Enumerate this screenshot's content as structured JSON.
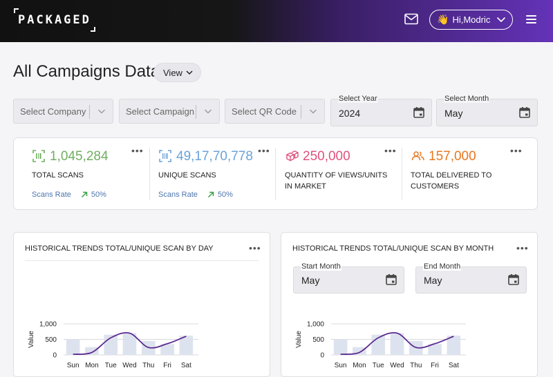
{
  "header": {
    "logo_text": "PACKAGED",
    "greeting": "Hi,Modric",
    "wave_emoji": "👋",
    "bg_from": "#111111",
    "bg_to": "#6433b8"
  },
  "page": {
    "title": "All Campaigns Data",
    "view_label": "View"
  },
  "filters": {
    "company_placeholder": "Select Company",
    "campaign_placeholder": "Select Campaign",
    "qr_placeholder": "Select QR Code",
    "year_label": "Select Year",
    "year_value": "2024",
    "month_label": "Select Month",
    "month_value": "May"
  },
  "stats": [
    {
      "value": "1,045,284",
      "label": "TOTAL SCANS",
      "rate_label": "Scans Rate",
      "rate_value": "50%",
      "color": "#6fae5f",
      "icon": "scan-icon"
    },
    {
      "value": "49,17,70,778",
      "label": "UNIQUE SCANS",
      "rate_label": "Scans Rate",
      "rate_value": "50%",
      "color": "#6aa3d9",
      "icon": "scan-icon"
    },
    {
      "value": "250,000",
      "label": "QUANTITY OF VIEWS/UNITS IN MARKET",
      "color": "#e0527f",
      "icon": "boxes-icon"
    },
    {
      "value": "157,000",
      "label": "TOTAL DELIVERED TO CUSTOMERS",
      "color": "#e8771e",
      "icon": "users-icon"
    }
  ],
  "daily_card": {
    "title": "HISTORICAL TRENDS TOTAL/UNIQUE SCAN BY DAY"
  },
  "monthly_card": {
    "title": "HISTORICAL TRENDS TOTAL/UNIQUE SCAN BY MONTH",
    "start_label": "Start Month",
    "start_value": "May",
    "end_label": "End Month",
    "end_value": "May"
  },
  "chart_data": [
    {
      "type": "bar",
      "categories": [
        "Sun",
        "Mon",
        "Tue",
        "Wed",
        "Thu",
        "Fri",
        "Sat"
      ],
      "series": [
        {
          "type": "bar",
          "values": [
            500,
            250,
            650,
            700,
            450,
            350,
            620
          ]
        },
        {
          "type": "line",
          "values": [
            20,
            80,
            550,
            700,
            240,
            360,
            600
          ]
        }
      ],
      "ylabel": "Value",
      "yticks": [
        "0",
        "500",
        "1,000"
      ],
      "ylim": [
        0,
        1000
      ],
      "bar_color": "#dde3ee",
      "line_color": "#5b2a91"
    },
    {
      "type": "bar",
      "categories": [
        "Sun",
        "Mon",
        "Tue",
        "Wed",
        "Thu",
        "Fri",
        "Sat"
      ],
      "series": [
        {
          "type": "bar",
          "values": [
            500,
            250,
            650,
            700,
            450,
            350,
            620
          ]
        },
        {
          "type": "line",
          "values": [
            20,
            80,
            550,
            700,
            240,
            360,
            600
          ]
        }
      ],
      "ylabel": "Value",
      "yticks": [
        "0",
        "500",
        "1,000"
      ],
      "ylim": [
        0,
        1000
      ],
      "bar_color": "#dde3ee",
      "line_color": "#5b2a91"
    }
  ]
}
